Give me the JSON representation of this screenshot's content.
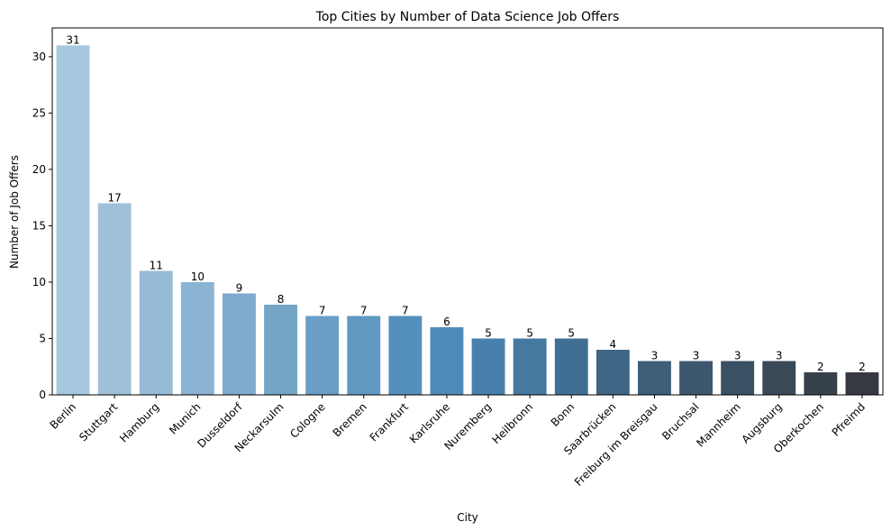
{
  "chart_data": {
    "type": "bar",
    "title": "Top Cities by Number of Data Science Job Offers",
    "xlabel": "City",
    "ylabel": "Number of Job Offers",
    "ylim": [
      0,
      32.55
    ],
    "yticks": [
      0,
      5,
      10,
      15,
      20,
      25,
      30
    ],
    "grid": false,
    "categories": [
      "Berlin",
      "Stuttgart",
      "Hamburg",
      "Munich",
      "Dusseldorf",
      "Neckarsulm",
      "Cologne",
      "Bremen",
      "Frankfurt",
      "Karlsruhe",
      "Nuremberg",
      "Heilbronn",
      "Bonn",
      "Saarbrücken",
      "Freiburg im Breisgau",
      "Bruchsal",
      "Mannheim",
      "Augsburg",
      "Oberkochen",
      "Pfreimd"
    ],
    "values": [
      31,
      17,
      11,
      10,
      9,
      8,
      7,
      7,
      7,
      6,
      5,
      5,
      5,
      4,
      3,
      3,
      3,
      3,
      2,
      2
    ],
    "colors": [
      "#a6c8df",
      "#9fc1d8",
      "#95bbd6",
      "#8bb3d3",
      "#80aacd",
      "#74a5c6",
      "#6a9ec6",
      "#6199c3",
      "#5590bd",
      "#4f8ab9",
      "#4880ab",
      "#45799f",
      "#416f93",
      "#3f6684",
      "#3d5f79",
      "#3c576e",
      "#3a5063",
      "#394958",
      "#37414c",
      "#363a40"
    ]
  }
}
